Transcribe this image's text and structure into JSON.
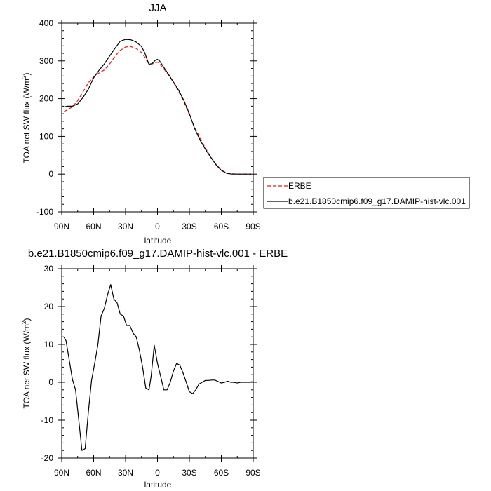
{
  "chart_data": [
    {
      "type": "line",
      "title": "JJA",
      "xlabel": "latitude",
      "ylabel": "TOA net SW flux (W/m",
      "ylabel_sup": "2",
      "ylabel_end": ")",
      "xlim": [
        90,
        -90
      ],
      "ylim": [
        -100,
        400
      ],
      "xticks": [
        90,
        60,
        30,
        0,
        -30,
        -60,
        -90
      ],
      "xticklabels": [
        "90N",
        "60N",
        "30N",
        "0",
        "30S",
        "60S",
        "90S"
      ],
      "yticks": [
        -100,
        0,
        100,
        200,
        300,
        400
      ],
      "yticklabels": [
        "-100",
        "0",
        "100",
        "200",
        "300",
        "400"
      ],
      "legend_position": "right",
      "series": [
        {
          "name": "ERBE",
          "color": "#e41a1c",
          "dash": "dashed",
          "x": [
            88,
            85,
            80,
            75,
            70,
            65,
            60,
            55,
            50,
            45,
            40,
            35,
            30,
            25,
            20,
            15,
            12,
            10,
            8,
            5,
            2,
            0,
            -2,
            -5,
            -10,
            -15,
            -20,
            -25,
            -30,
            -35,
            -40,
            -45,
            -50,
            -55,
            -60,
            -65,
            -70,
            -75,
            -80,
            -85,
            -88
          ],
          "y": [
            165,
            170,
            178,
            195,
            218,
            242,
            258,
            268,
            276,
            292,
            312,
            328,
            337,
            338,
            333,
            322,
            310,
            300,
            292,
            292,
            295,
            297,
            292,
            282,
            264,
            243,
            218,
            190,
            157,
            124,
            95,
            69,
            46,
            26,
            11,
            3,
            1,
            0,
            0,
            0,
            0
          ]
        },
        {
          "name": "b.e21.B1850cmip6.f09_g17.DAMIP-hist-vlc.001",
          "color": "#000000",
          "dash": "solid",
          "x": [
            88,
            85,
            80,
            75,
            70,
            65,
            60,
            55,
            50,
            45,
            40,
            35,
            30,
            25,
            20,
            15,
            12,
            10,
            8,
            5,
            2,
            0,
            -2,
            -5,
            -10,
            -15,
            -20,
            -25,
            -30,
            -35,
            -40,
            -45,
            -50,
            -55,
            -60,
            -65,
            -70,
            -75,
            -80,
            -85,
            -88
          ],
          "y": [
            178,
            180,
            180,
            186,
            203,
            225,
            255,
            275,
            292,
            313,
            333,
            352,
            357,
            356,
            350,
            338,
            322,
            306,
            291,
            293,
            302,
            304,
            300,
            287,
            266,
            244,
            222,
            194,
            160,
            120,
            90,
            66,
            45,
            25,
            10,
            2,
            0,
            0,
            0,
            0,
            0
          ]
        }
      ]
    },
    {
      "type": "line",
      "title": "b.e21.B1850cmip6.f09_g17.DAMIP-hist-vlc.001 - ERBE",
      "xlabel": "latitude",
      "ylabel": "TOA net SW flux (W/m",
      "ylabel_sup": "2",
      "ylabel_end": ")",
      "xlim": [
        90,
        -90
      ],
      "ylim": [
        -20,
        30
      ],
      "xticks": [
        90,
        60,
        30,
        0,
        -30,
        -60,
        -90
      ],
      "xticklabels": [
        "90N",
        "60N",
        "30N",
        "0",
        "30S",
        "60S",
        "90S"
      ],
      "yticks": [
        -20,
        -10,
        0,
        10,
        20,
        30
      ],
      "yticklabels": [
        "-20",
        "-10",
        "0",
        "10",
        "20",
        "30"
      ],
      "series": [
        {
          "color": "#000000",
          "dash": "solid",
          "x": [
            88,
            86,
            83,
            80,
            77,
            74,
            71,
            68,
            65,
            62,
            59,
            56,
            53,
            50,
            47,
            44,
            41,
            38,
            35,
            32,
            29,
            26,
            23,
            20,
            17,
            14,
            11,
            8,
            6,
            3,
            0,
            -3,
            -6,
            -9,
            -12,
            -15,
            -18,
            -21,
            -24,
            -27,
            -30,
            -33,
            -36,
            -39,
            -42,
            -45,
            -48,
            -51,
            -54,
            -57,
            -60,
            -63,
            -66,
            -69,
            -72,
            -75,
            -78,
            -81,
            -84,
            -87,
            -89
          ],
          "y": [
            12,
            11,
            6,
            0.8,
            -2,
            -10,
            -18,
            -17.5,
            -8,
            0.5,
            5,
            10,
            17.5,
            19.5,
            23,
            25.8,
            22,
            21,
            18,
            17.5,
            15,
            15,
            13,
            12,
            8.5,
            4,
            -1.5,
            -2,
            1.5,
            9.8,
            5,
            1.5,
            -2,
            -2,
            0,
            3,
            5,
            4.5,
            2.5,
            0,
            -2.5,
            -3,
            -2,
            -0.5,
            0,
            0.5,
            0.5,
            0.6,
            0.6,
            0.2,
            -0.2,
            0,
            0.3,
            0,
            0,
            -0.2,
            0,
            0,
            0,
            0,
            0.2
          ]
        }
      ]
    }
  ]
}
